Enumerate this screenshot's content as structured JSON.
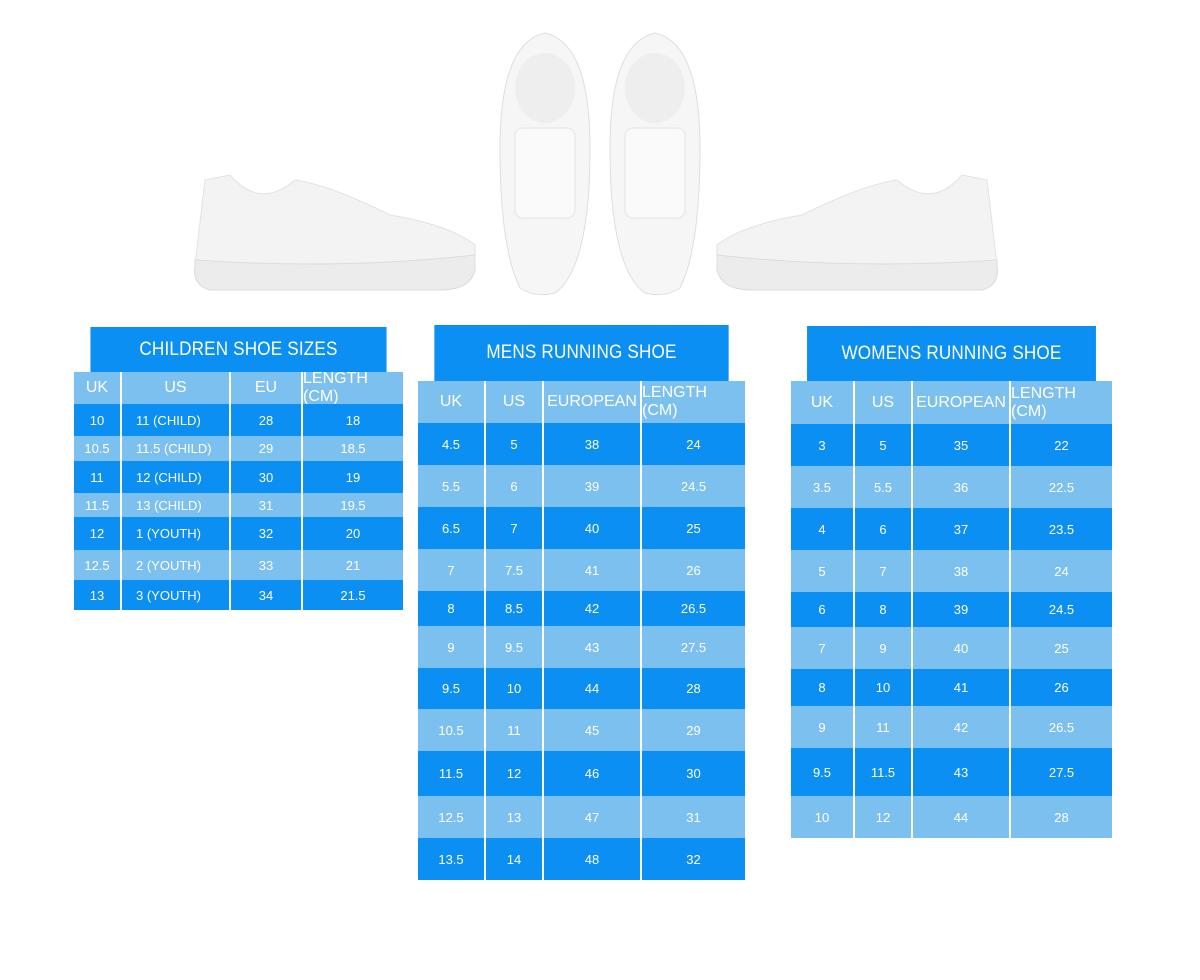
{
  "tables": {
    "children": {
      "title": "CHILDREN SHOE SIZES",
      "columns": [
        "UK",
        "US",
        "EU",
        "LENGTH (CM)"
      ],
      "rows": [
        [
          "10",
          "11 (CHILD)",
          "28",
          "18"
        ],
        [
          "10.5",
          "11.5 (CHILD)",
          "29",
          "18.5"
        ],
        [
          "11",
          "12 (CHILD)",
          "30",
          "19"
        ],
        [
          "11.5",
          "13 (CHILD)",
          "31",
          "19.5"
        ],
        [
          "12",
          "1 (YOUTH)",
          "32",
          "20"
        ],
        [
          "12.5",
          "2 (YOUTH)",
          "33",
          "21"
        ],
        [
          "13",
          "3 (YOUTH)",
          "34",
          "21.5"
        ]
      ]
    },
    "mens": {
      "title": "MENS RUNNING SHOE",
      "columns": [
        "UK",
        "US",
        "EUROPEAN",
        "LENGTH (CM)"
      ],
      "rows": [
        [
          "4.5",
          "5",
          "38",
          "24"
        ],
        [
          "5.5",
          "6",
          "39",
          "24.5"
        ],
        [
          "6.5",
          "7",
          "40",
          "25"
        ],
        [
          "7",
          "7.5",
          "41",
          "26"
        ],
        [
          "8",
          "8.5",
          "42",
          "26.5"
        ],
        [
          "9",
          "9.5",
          "43",
          "27.5"
        ],
        [
          "9.5",
          "10",
          "44",
          "28"
        ],
        [
          "10.5",
          "11",
          "45",
          "29"
        ],
        [
          "11.5",
          "12",
          "46",
          "30"
        ],
        [
          "12.5",
          "13",
          "47",
          "31"
        ],
        [
          "13.5",
          "14",
          "48",
          "32"
        ]
      ]
    },
    "womens": {
      "title": "WOMENS RUNNING SHOE",
      "columns": [
        "UK",
        "US",
        "EUROPEAN",
        "LENGTH (CM)"
      ],
      "rows": [
        [
          "3",
          "5",
          "35",
          "22"
        ],
        [
          "3.5",
          "5.5",
          "36",
          "22.5"
        ],
        [
          "4",
          "6",
          "37",
          "23.5"
        ],
        [
          "5",
          "7",
          "38",
          "24"
        ],
        [
          "6",
          "8",
          "39",
          "24.5"
        ],
        [
          "7",
          "9",
          "40",
          "25"
        ],
        [
          "8",
          "10",
          "41",
          "26"
        ],
        [
          "9",
          "11",
          "42",
          "26.5"
        ],
        [
          "9.5",
          "11.5",
          "43",
          "27.5"
        ],
        [
          "10",
          "12",
          "44",
          "28"
        ]
      ]
    }
  },
  "colors": {
    "dark_blue": "#0b8ff2",
    "light_blue": "#7cc0ef",
    "text": "#ffffff"
  },
  "images": [
    "white-sneaker-side-left",
    "white-sneaker-top-left",
    "white-sneaker-top-right",
    "white-sneaker-side-right"
  ]
}
